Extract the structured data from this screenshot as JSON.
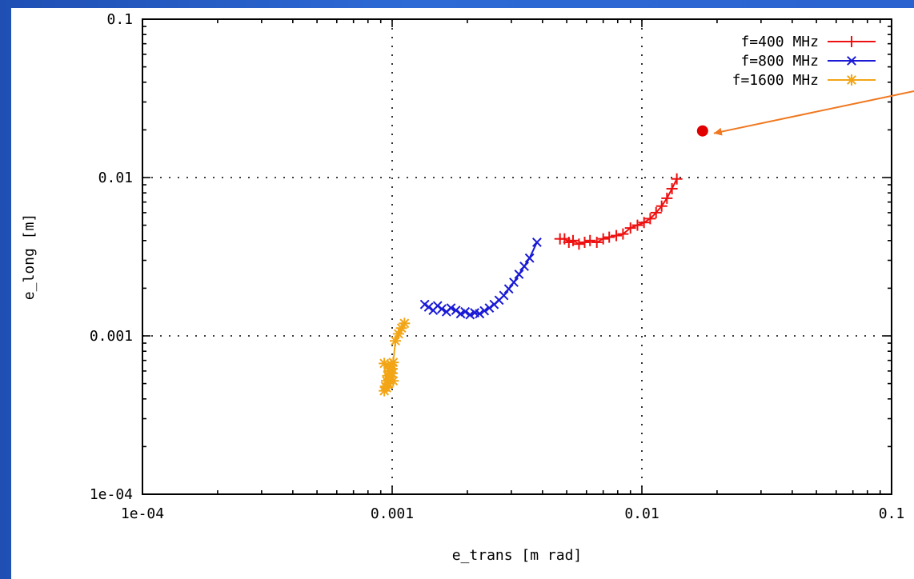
{
  "chart_data": {
    "type": "scatter",
    "title": "",
    "xlabel": "e_trans [m rad]",
    "ylabel": "e_long [m]",
    "xscale": "log",
    "yscale": "log",
    "xlim": [
      0.0001,
      0.1
    ],
    "ylim": [
      0.0001,
      0.1
    ],
    "xticks": [
      "1e-04",
      "0.001",
      "0.01",
      "0.1"
    ],
    "yticks": [
      "1e-04",
      "0.001",
      "0.01",
      "0.1"
    ],
    "grid": true,
    "legend_position": "top-right",
    "series": [
      {
        "name": "f=400 MHz",
        "color": "#ee1111",
        "marker": "plus",
        "x": [
          0.0047,
          0.0049,
          0.0051,
          0.0053,
          0.0056,
          0.0059,
          0.0062,
          0.0066,
          0.007,
          0.0074,
          0.0079,
          0.0084,
          0.009,
          0.0096,
          0.0102,
          0.0108,
          0.0114,
          0.012,
          0.0126,
          0.0132,
          0.0138
        ],
        "y": [
          0.0041,
          0.0041,
          0.0039,
          0.004,
          0.0038,
          0.0039,
          0.004,
          0.0039,
          0.0041,
          0.0042,
          0.0043,
          0.0044,
          0.0048,
          0.005,
          0.0052,
          0.0055,
          0.006,
          0.0066,
          0.0074,
          0.0085,
          0.0098
        ]
      },
      {
        "name": "f=800 MHz",
        "color": "#1a1ad6",
        "marker": "cross",
        "x": [
          0.00135,
          0.0014,
          0.00146,
          0.00152,
          0.00158,
          0.00165,
          0.00172,
          0.0018,
          0.00188,
          0.00196,
          0.00205,
          0.00214,
          0.00224,
          0.00234,
          0.00245,
          0.00256,
          0.00268,
          0.0028,
          0.00293,
          0.00307,
          0.00322,
          0.00338,
          0.00355,
          0.0038
        ],
        "y": [
          0.00158,
          0.00152,
          0.00145,
          0.00155,
          0.00148,
          0.00142,
          0.0015,
          0.00145,
          0.00138,
          0.00142,
          0.00136,
          0.0014,
          0.00138,
          0.00144,
          0.0015,
          0.00158,
          0.00168,
          0.0018,
          0.00198,
          0.00218,
          0.00245,
          0.00275,
          0.0031,
          0.0039
        ]
      },
      {
        "name": "f=1600 MHz",
        "color": "#f2a516",
        "marker": "star",
        "x": [
          0.00093,
          0.00094,
          0.00095,
          0.00096,
          0.00097,
          0.00098,
          0.00099,
          0.001,
          0.00101,
          0.00093,
          0.00095,
          0.00097,
          0.00099,
          0.001,
          0.00101,
          0.00103,
          0.00106,
          0.00109,
          0.00112
        ],
        "y": [
          0.00045,
          0.00048,
          0.00052,
          0.00056,
          0.0006,
          0.00063,
          0.00066,
          0.00058,
          0.00052,
          0.00067,
          0.00047,
          0.0005,
          0.00055,
          0.00062,
          0.00068,
          0.00093,
          0.00103,
          0.00112,
          0.0012
        ]
      }
    ],
    "annotation": {
      "point": [
        0.0175,
        0.0197
      ],
      "color": "#e00000",
      "arrow_color": "#f07820"
    }
  }
}
